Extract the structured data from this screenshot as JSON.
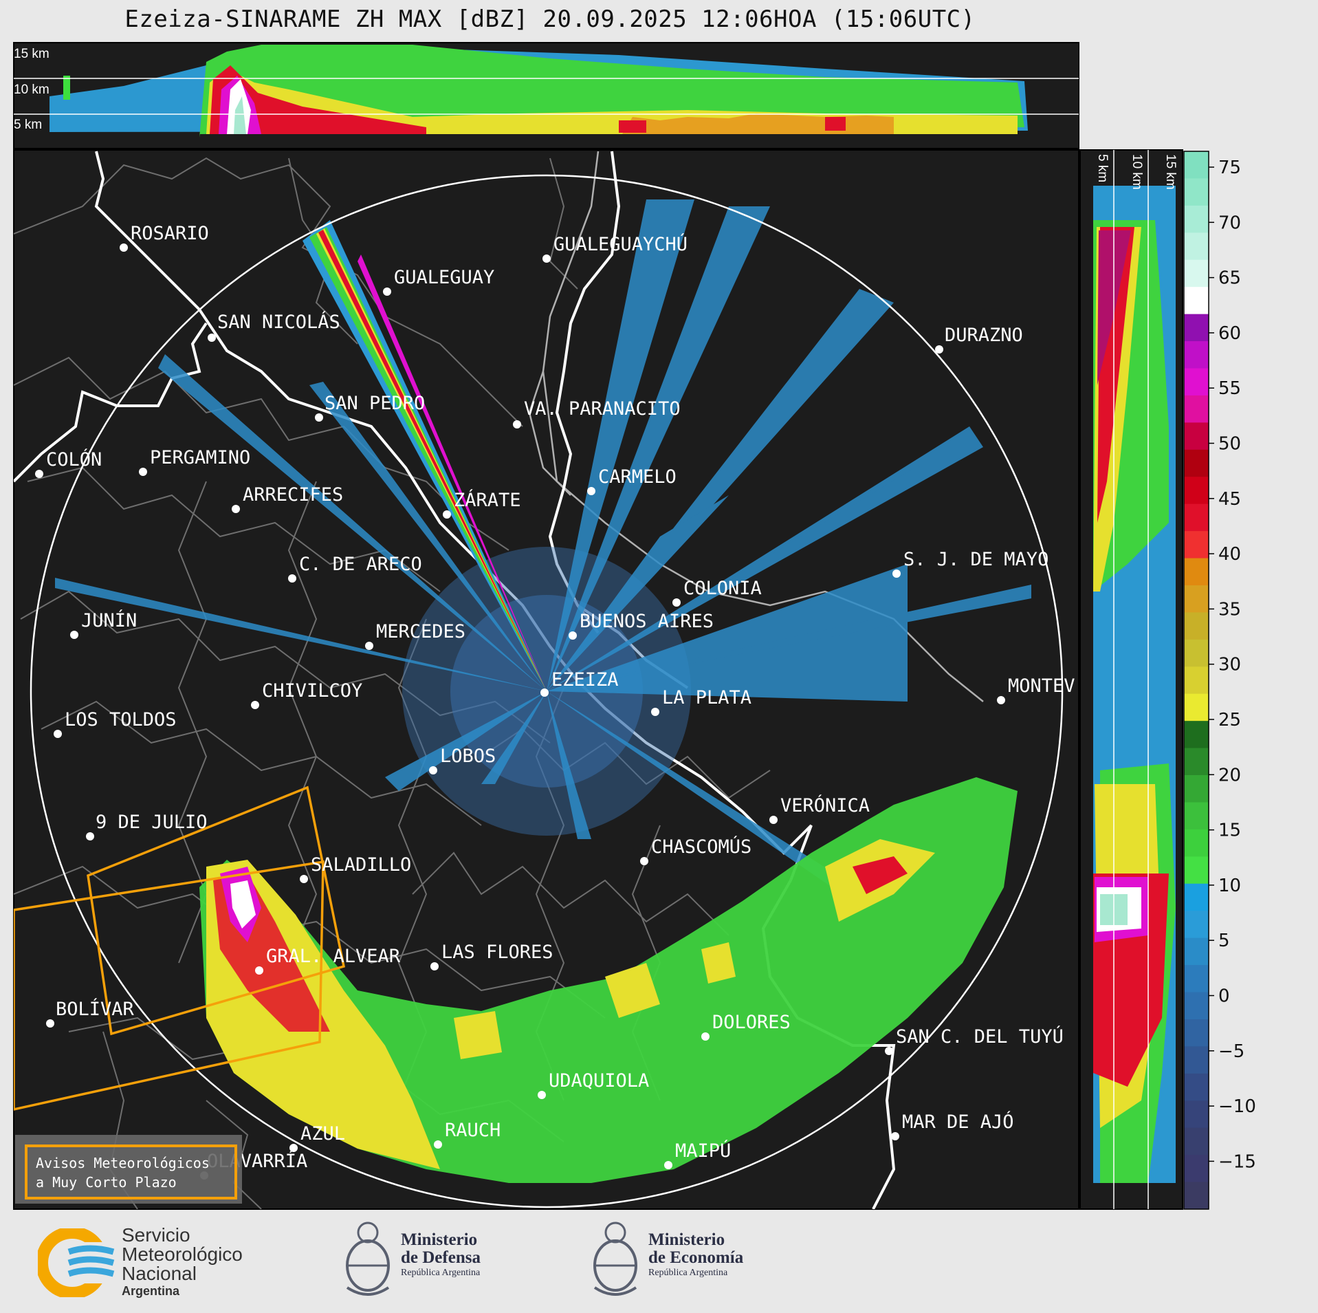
{
  "title": "Ezeiza-SINARAME ZH MAX [dBZ] 20.09.2025 12:06HOA (15:06UTC)",
  "height_labels_top": [
    "15 km",
    "10 km",
    "5 km"
  ],
  "height_labels_side": [
    "5 km",
    "10 km",
    "15 km"
  ],
  "colorbar": {
    "ticks": [
      "75",
      "70",
      "65",
      "60",
      "55",
      "50",
      "45",
      "40",
      "35",
      "30",
      "25",
      "20",
      "15",
      "10",
      "5",
      "0",
      "−5",
      "−10",
      "−15"
    ],
    "colors": {
      "low": "#3b3b6e",
      "cyan": "#29a4dc",
      "green": "#3de03d",
      "yellow": "#eaea30",
      "orange": "#e08a10",
      "red": "#e0102a",
      "magenta": "#e010d0",
      "white": "#ffffff",
      "mint": "#80e0c0"
    }
  },
  "cities": [
    "ROSARIO",
    "GUALEGUAYCHÚ",
    "GUALEGUAY",
    "SAN NICOLÁS",
    "DURAZNO",
    "SAN PEDRO",
    "VA. PARANACITO",
    "COLÓN",
    "PERGAMINO",
    "ARRECIFES",
    "ZÁRATE",
    "CARMELO",
    "C. DE ARECO",
    "S. J. DE MAYO",
    "COLONIA",
    "JUNÍN",
    "BUENOS AIRES",
    "MERCEDES",
    "EZEIZA",
    "MONTEV",
    "CHIVILCOY",
    "LA PLATA",
    "LOS TOLDOS",
    "LOBOS",
    "VERÓNICA",
    "9 DE JULIO",
    "CHASCOMÚS",
    "SALADILLO",
    "GRAL. ALVEAR",
    "LAS FLORES",
    "BOLÍVAR",
    "DOLORES",
    "SAN C. DEL TUYÚ",
    "UDAQUIOLA",
    "AZUL",
    "RAUCH",
    "MAR DE AJÓ",
    "OLAVARRÍA",
    "MAIPÚ"
  ],
  "legend_box": {
    "line1": "Avisos Meteorológicos",
    "line2": "a Muy Corto Plazo",
    "color": "#f5a00a"
  },
  "logos": {
    "smn": [
      "Servicio",
      "Meteorológico",
      "Nacional",
      "Argentina"
    ],
    "defensa": [
      "Ministerio",
      "de Defensa",
      "República Argentina"
    ],
    "economia": [
      "Ministerio",
      "de Economía",
      "República Argentina"
    ]
  }
}
